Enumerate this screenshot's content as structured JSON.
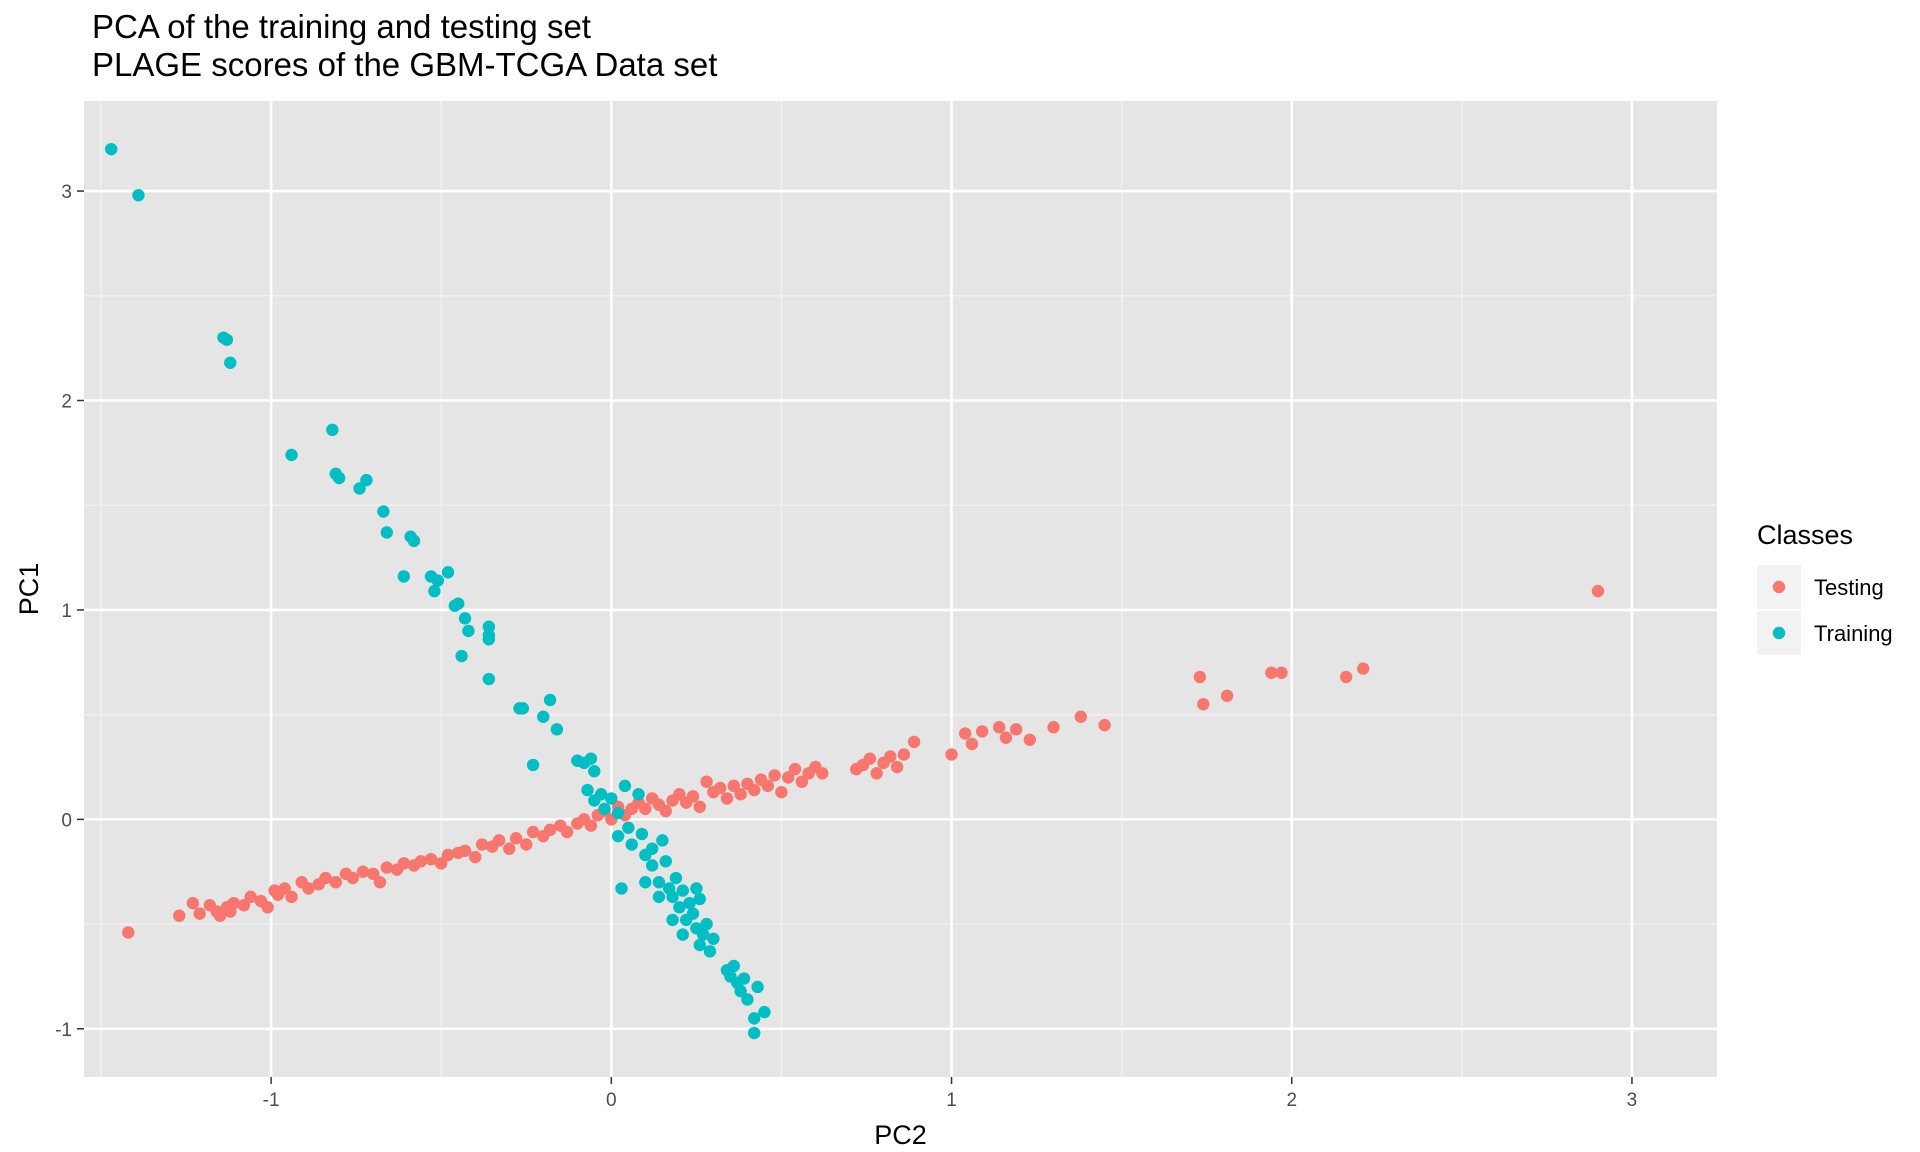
{
  "chart_data": {
    "type": "scatter",
    "title": "PCA of the training and testing set",
    "subtitle": "PLAGE scores of the GBM-TCGA Data set",
    "xlabel": "PC2",
    "ylabel": "PC1",
    "xlim": [
      -1.55,
      3.25
    ],
    "ylim": [
      -1.23,
      3.43
    ],
    "xticks": [
      -1,
      0,
      1,
      2,
      3
    ],
    "xtick_labels": [
      "-1",
      "0",
      "1",
      "2",
      "3"
    ],
    "yticks": [
      -1,
      0,
      1,
      2,
      3
    ],
    "ytick_labels": [
      "-1",
      "0",
      "1",
      "2",
      "3"
    ],
    "grid": true,
    "panel_background": "#e5e5e5",
    "legend": {
      "title": "Classes",
      "position": "right"
    },
    "series": [
      {
        "name": "Testing",
        "color": "#f8766d",
        "points": [
          [
            -1.42,
            -0.54
          ],
          [
            -1.27,
            -0.46
          ],
          [
            -1.23,
            -0.4
          ],
          [
            -1.21,
            -0.45
          ],
          [
            -1.18,
            -0.41
          ],
          [
            -1.16,
            -0.44
          ],
          [
            -1.15,
            -0.46
          ],
          [
            -1.13,
            -0.42
          ],
          [
            -1.12,
            -0.44
          ],
          [
            -1.11,
            -0.4
          ],
          [
            -1.08,
            -0.41
          ],
          [
            -1.06,
            -0.37
          ],
          [
            -1.03,
            -0.39
          ],
          [
            -1.01,
            -0.42
          ],
          [
            -0.99,
            -0.34
          ],
          [
            -0.98,
            -0.36
          ],
          [
            -0.96,
            -0.33
          ],
          [
            -0.94,
            -0.37
          ],
          [
            -0.91,
            -0.3
          ],
          [
            -0.89,
            -0.33
          ],
          [
            -0.86,
            -0.31
          ],
          [
            -0.84,
            -0.28
          ],
          [
            -0.81,
            -0.3
          ],
          [
            -0.78,
            -0.26
          ],
          [
            -0.76,
            -0.28
          ],
          [
            -0.73,
            -0.25
          ],
          [
            -0.7,
            -0.26
          ],
          [
            -0.68,
            -0.3
          ],
          [
            -0.66,
            -0.23
          ],
          [
            -0.63,
            -0.24
          ],
          [
            -0.61,
            -0.21
          ],
          [
            -0.58,
            -0.22
          ],
          [
            -0.56,
            -0.2
          ],
          [
            -0.53,
            -0.19
          ],
          [
            -0.5,
            -0.21
          ],
          [
            -0.48,
            -0.17
          ],
          [
            -0.45,
            -0.16
          ],
          [
            -0.43,
            -0.15
          ],
          [
            -0.4,
            -0.18
          ],
          [
            -0.38,
            -0.12
          ],
          [
            -0.35,
            -0.13
          ],
          [
            -0.33,
            -0.1
          ],
          [
            -0.3,
            -0.14
          ],
          [
            -0.28,
            -0.09
          ],
          [
            -0.25,
            -0.12
          ],
          [
            -0.23,
            -0.06
          ],
          [
            -0.2,
            -0.08
          ],
          [
            -0.18,
            -0.05
          ],
          [
            -0.15,
            -0.03
          ],
          [
            -0.13,
            -0.06
          ],
          [
            -0.1,
            -0.02
          ],
          [
            -0.08,
            0.0
          ],
          [
            -0.06,
            -0.03
          ],
          [
            -0.04,
            0.02
          ],
          [
            -0.02,
            0.04
          ],
          [
            0.0,
            0.0
          ],
          [
            0.02,
            0.06
          ],
          [
            0.04,
            0.02
          ],
          [
            0.06,
            0.05
          ],
          [
            0.08,
            0.08
          ],
          [
            0.1,
            0.05
          ],
          [
            0.12,
            0.1
          ],
          [
            0.14,
            0.07
          ],
          [
            0.16,
            0.04
          ],
          [
            0.18,
            0.09
          ],
          [
            0.2,
            0.12
          ],
          [
            0.22,
            0.08
          ],
          [
            0.24,
            0.11
          ],
          [
            0.26,
            0.06
          ],
          [
            0.28,
            0.18
          ],
          [
            0.3,
            0.13
          ],
          [
            0.32,
            0.15
          ],
          [
            0.34,
            0.1
          ],
          [
            0.36,
            0.16
          ],
          [
            0.38,
            0.12
          ],
          [
            0.4,
            0.17
          ],
          [
            0.42,
            0.14
          ],
          [
            0.44,
            0.19
          ],
          [
            0.46,
            0.16
          ],
          [
            0.48,
            0.21
          ],
          [
            0.5,
            0.13
          ],
          [
            0.52,
            0.2
          ],
          [
            0.54,
            0.24
          ],
          [
            0.56,
            0.18
          ],
          [
            0.58,
            0.22
          ],
          [
            0.6,
            0.25
          ],
          [
            0.62,
            0.22
          ],
          [
            0.72,
            0.24
          ],
          [
            0.74,
            0.26
          ],
          [
            0.76,
            0.29
          ],
          [
            0.78,
            0.22
          ],
          [
            0.8,
            0.27
          ],
          [
            0.82,
            0.3
          ],
          [
            0.84,
            0.25
          ],
          [
            0.86,
            0.31
          ],
          [
            0.89,
            0.37
          ],
          [
            1.0,
            0.31
          ],
          [
            1.04,
            0.41
          ],
          [
            1.06,
            0.36
          ],
          [
            1.09,
            0.42
          ],
          [
            1.14,
            0.44
          ],
          [
            1.16,
            0.39
          ],
          [
            1.19,
            0.43
          ],
          [
            1.23,
            0.38
          ],
          [
            1.3,
            0.44
          ],
          [
            1.38,
            0.49
          ],
          [
            1.45,
            0.45
          ],
          [
            1.73,
            0.68
          ],
          [
            1.74,
            0.55
          ],
          [
            1.81,
            0.59
          ],
          [
            1.94,
            0.7
          ],
          [
            1.97,
            0.7
          ],
          [
            2.16,
            0.68
          ],
          [
            2.21,
            0.72
          ],
          [
            2.9,
            1.09
          ]
        ]
      },
      {
        "name": "Training",
        "color": "#00bfc4",
        "points": [
          [
            -1.47,
            3.2
          ],
          [
            -1.39,
            2.98
          ],
          [
            -1.14,
            2.3
          ],
          [
            -1.13,
            2.29
          ],
          [
            -1.12,
            2.18
          ],
          [
            -0.94,
            1.74
          ],
          [
            -0.82,
            1.86
          ],
          [
            -0.81,
            1.65
          ],
          [
            -0.8,
            1.63
          ],
          [
            -0.74,
            1.58
          ],
          [
            -0.72,
            1.62
          ],
          [
            -0.67,
            1.47
          ],
          [
            -0.66,
            1.37
          ],
          [
            -0.61,
            1.16
          ],
          [
            -0.59,
            1.35
          ],
          [
            -0.58,
            1.33
          ],
          [
            -0.53,
            1.16
          ],
          [
            -0.52,
            1.09
          ],
          [
            -0.51,
            1.14
          ],
          [
            -0.48,
            1.18
          ],
          [
            -0.46,
            1.02
          ],
          [
            -0.45,
            1.03
          ],
          [
            -0.43,
            0.96
          ],
          [
            -0.42,
            0.9
          ],
          [
            -0.44,
            0.78
          ],
          [
            -0.36,
            0.92
          ],
          [
            -0.36,
            0.88
          ],
          [
            -0.36,
            0.86
          ],
          [
            -0.36,
            0.67
          ],
          [
            -0.27,
            0.53
          ],
          [
            -0.26,
            0.53
          ],
          [
            -0.2,
            0.49
          ],
          [
            -0.18,
            0.57
          ],
          [
            -0.16,
            0.43
          ],
          [
            -0.23,
            0.26
          ],
          [
            -0.1,
            0.28
          ],
          [
            -0.08,
            0.27
          ],
          [
            -0.06,
            0.29
          ],
          [
            -0.05,
            0.23
          ],
          [
            -0.07,
            0.14
          ],
          [
            -0.03,
            0.12
          ],
          [
            -0.05,
            0.09
          ],
          [
            0.0,
            0.1
          ],
          [
            -0.02,
            0.05
          ],
          [
            0.02,
            0.03
          ],
          [
            0.02,
            -0.08
          ],
          [
            0.04,
            0.16
          ],
          [
            0.05,
            -0.04
          ],
          [
            0.06,
            -0.12
          ],
          [
            0.08,
            0.12
          ],
          [
            0.09,
            -0.07
          ],
          [
            0.1,
            -0.17
          ],
          [
            0.12,
            -0.14
          ],
          [
            0.12,
            -0.22
          ],
          [
            0.14,
            -0.3
          ],
          [
            0.15,
            -0.1
          ],
          [
            0.16,
            -0.2
          ],
          [
            0.17,
            -0.33
          ],
          [
            0.18,
            -0.37
          ],
          [
            0.19,
            -0.28
          ],
          [
            0.2,
            -0.42
          ],
          [
            0.21,
            -0.34
          ],
          [
            0.22,
            -0.48
          ],
          [
            0.23,
            -0.4
          ],
          [
            0.24,
            -0.45
          ],
          [
            0.25,
            -0.52
          ],
          [
            0.26,
            -0.6
          ],
          [
            0.27,
            -0.55
          ],
          [
            0.28,
            -0.5
          ],
          [
            0.29,
            -0.63
          ],
          [
            0.3,
            -0.57
          ],
          [
            0.25,
            -0.33
          ],
          [
            0.26,
            -0.38
          ],
          [
            0.03,
            -0.33
          ],
          [
            0.1,
            -0.3
          ],
          [
            0.34,
            -0.72
          ],
          [
            0.35,
            -0.75
          ],
          [
            0.36,
            -0.7
          ],
          [
            0.37,
            -0.78
          ],
          [
            0.38,
            -0.82
          ],
          [
            0.39,
            -0.76
          ],
          [
            0.4,
            -0.86
          ],
          [
            0.42,
            -0.95
          ],
          [
            0.43,
            -0.8
          ],
          [
            0.45,
            -0.92
          ],
          [
            0.42,
            -1.02
          ],
          [
            0.14,
            -0.37
          ],
          [
            0.18,
            -0.48
          ],
          [
            0.21,
            -0.55
          ]
        ]
      }
    ]
  }
}
